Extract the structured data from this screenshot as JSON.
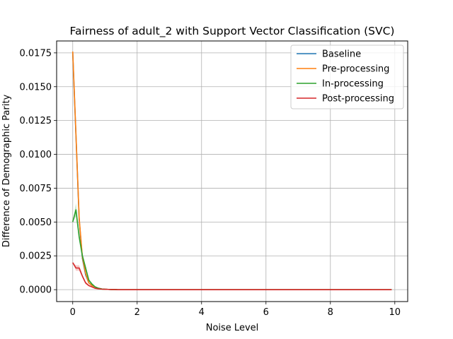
{
  "chart_data": {
    "type": "line",
    "title": "Fairness of adult_2 with Support Vector Classification (SVC)",
    "xlabel": "Noise Level",
    "ylabel": "Difference of Demographic Parity",
    "xlim": [
      -0.5,
      10.4
    ],
    "ylim": [
      -0.00088,
      0.01838
    ],
    "xticks": [
      0,
      2,
      4,
      6,
      8,
      10
    ],
    "xtick_labels": [
      "0",
      "2",
      "4",
      "6",
      "8",
      "10"
    ],
    "yticks": [
      0,
      0.0025,
      0.005,
      0.0075,
      0.01,
      0.0125,
      0.015,
      0.0175
    ],
    "ytick_labels": [
      "0.0000",
      "0.0025",
      "0.0050",
      "0.0075",
      "0.0100",
      "0.0125",
      "0.0150",
      "0.0175"
    ],
    "grid": true,
    "legend_position": "top-right",
    "x": [
      0.0,
      0.1,
      0.2,
      0.3,
      0.4,
      0.5,
      0.6,
      0.7,
      0.8,
      0.9,
      1.0,
      1.1,
      1.2,
      1.3,
      1.4,
      1.5,
      2.0,
      2.5,
      3.0,
      3.5,
      4.0,
      4.5,
      5.0,
      5.5,
      6.0,
      6.5,
      7.0,
      7.5,
      8.0,
      8.5,
      9.0,
      9.5,
      9.9
    ],
    "series": [
      {
        "name": "Baseline",
        "color": "#1f77b4",
        "values": [
          0.0175,
          0.0114,
          0.0052,
          0.0023,
          0.0011,
          0.0005,
          0.0003,
          0.0002,
          0.0001,
          5e-05,
          3e-05,
          2e-05,
          1e-05,
          1e-05,
          0.0,
          0.0,
          0.0,
          0.0,
          0.0,
          0.0,
          0.0,
          0.0,
          0.0,
          0.0,
          0.0,
          0.0,
          0.0,
          0.0,
          0.0,
          0.0,
          0.0,
          0.0,
          0.0
        ]
      },
      {
        "name": "Pre-processing",
        "color": "#ff7f0e",
        "values": [
          0.0176,
          0.0115,
          0.0053,
          0.0024,
          0.0012,
          0.0005,
          0.0003,
          0.0002,
          0.0001,
          5e-05,
          3e-05,
          2e-05,
          1e-05,
          1e-05,
          0.0,
          0.0,
          0.0,
          0.0,
          0.0,
          0.0,
          0.0,
          0.0,
          0.0,
          0.0,
          0.0,
          0.0,
          0.0,
          0.0,
          0.0,
          0.0,
          0.0,
          0.0,
          0.0
        ]
      },
      {
        "name": "In-processing",
        "color": "#2ca02c",
        "values": [
          0.005,
          0.0059,
          0.0039,
          0.0025,
          0.0016,
          0.0007,
          0.0004,
          0.0002,
          0.0001,
          5e-05,
          3e-05,
          2e-05,
          1e-05,
          1e-05,
          0.0,
          0.0,
          0.0,
          0.0,
          0.0,
          0.0,
          0.0,
          0.0,
          0.0,
          0.0,
          0.0,
          0.0,
          0.0,
          0.0,
          0.0,
          0.0,
          0.0,
          0.0,
          0.0
        ],
        "band_lower": [
          0.005,
          0.0054,
          0.0036,
          0.0023,
          0.0014,
          0.0006,
          0.0003,
          0.00015,
          8e-05,
          4e-05,
          2e-05,
          1e-05,
          0.0,
          0.0,
          0.0,
          0.0,
          0.0,
          0.0,
          0.0,
          0.0,
          0.0,
          0.0,
          0.0,
          0.0,
          0.0,
          0.0,
          0.0,
          0.0,
          0.0,
          0.0,
          0.0,
          0.0,
          0.0
        ],
        "band_upper": [
          0.005,
          0.0064,
          0.0042,
          0.0027,
          0.0018,
          0.0008,
          0.0005,
          0.00025,
          0.00012,
          6e-05,
          4e-05,
          3e-05,
          2e-05,
          1e-05,
          0.0,
          0.0,
          0.0,
          0.0,
          0.0,
          0.0,
          0.0,
          0.0,
          0.0,
          0.0,
          0.0,
          0.0,
          0.0,
          0.0,
          0.0,
          0.0,
          0.0,
          0.0,
          0.0
        ]
      },
      {
        "name": "Post-processing",
        "color": "#d62728",
        "values": [
          0.002,
          0.0016,
          0.0016,
          0.001,
          0.0005,
          0.0003,
          0.0002,
          0.0001,
          6e-05,
          4e-05,
          3e-05,
          2e-05,
          1e-05,
          1e-05,
          0.0,
          0.0,
          0.0,
          0.0,
          0.0,
          0.0,
          0.0,
          0.0,
          0.0,
          0.0,
          0.0,
          0.0,
          0.0,
          0.0,
          0.0,
          0.0,
          0.0,
          0.0,
          0.0
        ],
        "band_lower": [
          0.002,
          0.0014,
          0.0014,
          0.0009,
          0.0004,
          0.00025,
          0.00015,
          8e-05,
          5e-05,
          3e-05,
          2e-05,
          1e-05,
          0.0,
          0.0,
          0.0,
          0.0,
          0.0,
          0.0,
          0.0,
          0.0,
          0.0,
          0.0,
          0.0,
          0.0,
          0.0,
          0.0,
          0.0,
          0.0,
          0.0,
          0.0,
          0.0,
          0.0,
          0.0
        ],
        "band_upper": [
          0.002,
          0.0018,
          0.0018,
          0.0011,
          0.0006,
          0.00035,
          0.00025,
          0.00012,
          7e-05,
          5e-05,
          4e-05,
          3e-05,
          2e-05,
          1e-05,
          0.0,
          0.0,
          0.0,
          0.0,
          0.0,
          0.0,
          0.0,
          0.0,
          0.0,
          0.0,
          0.0,
          0.0,
          0.0,
          0.0,
          0.0,
          0.0,
          0.0,
          0.0,
          0.0
        ]
      }
    ]
  }
}
